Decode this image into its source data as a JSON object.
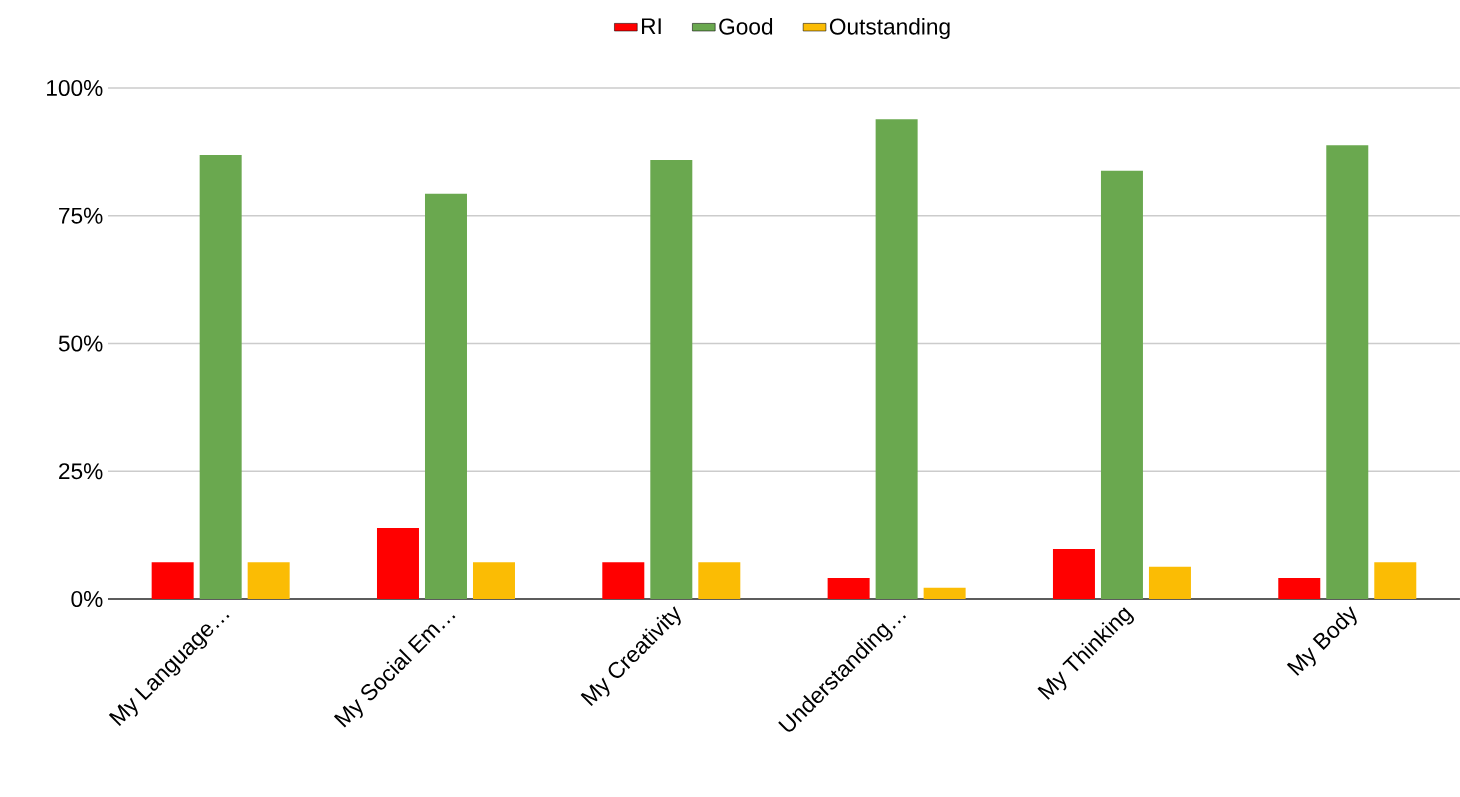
{
  "chart_data": {
    "type": "bar",
    "categories": [
      "My Language…",
      "My Social Em…",
      "My Creativity",
      "Understanding…",
      "My Thinking",
      "My Body"
    ],
    "series": [
      {
        "name": "RI",
        "color": "#ff0000",
        "values": [
          7.2,
          13.9,
          7.2,
          4.1,
          9.8,
          4.1
        ]
      },
      {
        "name": "Good",
        "color": "#6aa84f",
        "values": [
          86.9,
          79.3,
          85.9,
          93.9,
          83.8,
          88.8
        ]
      },
      {
        "name": "Outstanding",
        "color": "#fbbc04",
        "values": [
          7.2,
          7.2,
          7.2,
          2.2,
          6.3,
          7.2
        ]
      }
    ],
    "ylim": [
      0,
      100
    ],
    "yticks": [
      {
        "value": 0,
        "label": "0%"
      },
      {
        "value": 25,
        "label": "25%"
      },
      {
        "value": 50,
        "label": "50%"
      },
      {
        "value": 75,
        "label": "75%"
      },
      {
        "value": 100,
        "label": "100%"
      }
    ],
    "grid": "y",
    "legend": "top"
  }
}
